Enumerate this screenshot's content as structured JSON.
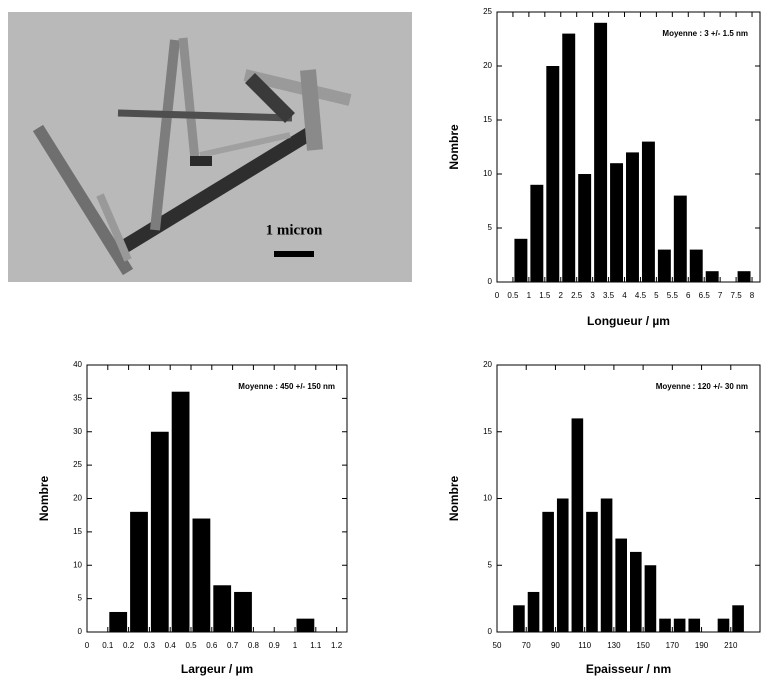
{
  "image": {
    "scale_label": "1 micron"
  },
  "chart_data": [
    {
      "type": "histogram",
      "xlabel": "Longueur / µm",
      "ylabel": "Nombre",
      "annotation": "Moyenne : 3 +/- 1.5 nm",
      "color": "#000000",
      "bins": [
        0.5,
        1,
        1.5,
        2,
        2.5,
        3,
        3.5,
        4,
        4.5,
        5,
        5.5,
        6,
        6.5,
        7,
        7.5,
        8
      ],
      "values": [
        4,
        9,
        20,
        23,
        10,
        24,
        11,
        12,
        13,
        3,
        8,
        3,
        1,
        0,
        1
      ],
      "xlim": [
        0,
        8.25
      ],
      "xticks": [
        0,
        0.5,
        1,
        1.5,
        2,
        2.5,
        3,
        3.5,
        4,
        4.5,
        5,
        5.5,
        6,
        6.5,
        7,
        7.5,
        8
      ],
      "ylim": [
        0,
        25
      ],
      "yticks": [
        0,
        5,
        10,
        15,
        20,
        25
      ]
    },
    {
      "type": "histogram",
      "xlabel": "Largeur / µm",
      "ylabel": "Nombre",
      "annotation": "Moyenne : 450 +/- 150 nm",
      "color": "#000000",
      "bins": [
        0.1,
        0.2,
        0.3,
        0.4,
        0.5,
        0.6,
        0.7,
        0.8,
        0.9,
        1.0,
        1.1
      ],
      "values": [
        3,
        18,
        30,
        36,
        17,
        7,
        6,
        0,
        0,
        2
      ],
      "xlim": [
        0,
        1.25
      ],
      "xticks": [
        0,
        0.1,
        0.2,
        0.3,
        0.4,
        0.5,
        0.6,
        0.7,
        0.8,
        0.9,
        1,
        1.1,
        1.2
      ],
      "ylim": [
        0,
        40
      ],
      "yticks": [
        0,
        5,
        10,
        15,
        20,
        25,
        30,
        35,
        40
      ]
    },
    {
      "type": "histogram",
      "xlabel": "Epaisseur / nm",
      "ylabel": "Nombre",
      "annotation": "Moyenne : 120 +/- 30 nm",
      "color": "#000000",
      "bins": [
        60,
        70,
        80,
        90,
        100,
        110,
        120,
        130,
        140,
        150,
        160,
        170,
        180,
        190,
        200,
        210,
        220
      ],
      "values": [
        2,
        3,
        9,
        10,
        16,
        9,
        10,
        7,
        6,
        5,
        1,
        1,
        1,
        0,
        1,
        2
      ],
      "xlim": [
        50,
        230
      ],
      "xticks": [
        50,
        70,
        90,
        110,
        130,
        150,
        170,
        190,
        210
      ],
      "ylim": [
        0,
        20
      ],
      "yticks": [
        0,
        5,
        10,
        15,
        20
      ]
    }
  ]
}
